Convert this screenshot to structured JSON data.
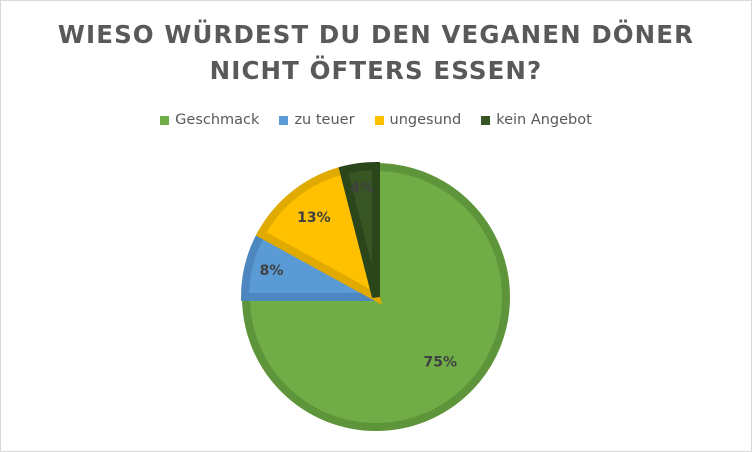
{
  "chart_data": {
    "type": "pie",
    "title_lines": [
      "WIESO WÜRDEST DU DEN VEGANEN DÖNER",
      "NICHT ÖFTERS ESSEN?"
    ],
    "legend_position": "top",
    "categories": [
      "Geschmack",
      "zu teuer",
      "ungesund",
      "kein Angebot"
    ],
    "values": [
      75,
      8,
      13,
      4
    ],
    "labels": [
      "75%",
      "8%",
      "13%",
      "4%"
    ],
    "colors": [
      "#70ad47",
      "#5b9bd5",
      "#ffc000",
      "#375623"
    ],
    "border_colors": [
      "#5f953a",
      "#4d87bf",
      "#e0aa00",
      "#2c461c"
    ]
  }
}
